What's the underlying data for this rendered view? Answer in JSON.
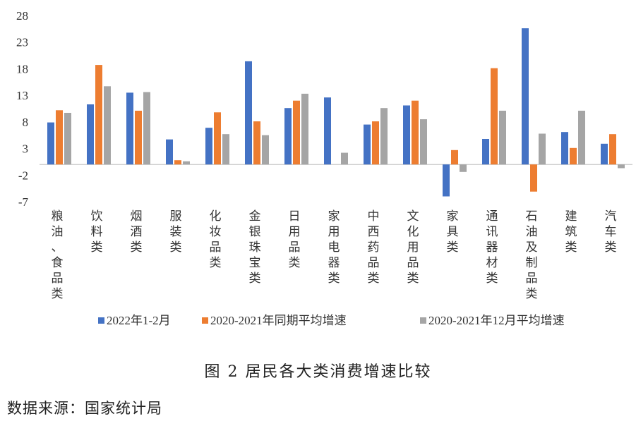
{
  "chart_data": {
    "type": "bar",
    "categories": [
      "粮油、食品类",
      "饮料类",
      "烟酒类",
      "服装类",
      "化妆品类",
      "金银珠宝类",
      "日用品类",
      "家用电器类",
      "中西药品类",
      "文化用品类",
      "家具类",
      "通讯器材类",
      "石油及制品类",
      "建筑类",
      "汽车类"
    ],
    "series": [
      {
        "name": "2022年1-2月",
        "color": "#4472C4",
        "values": [
          7.9,
          11.3,
          13.5,
          4.7,
          6.9,
          19.4,
          10.6,
          12.6,
          7.5,
          11.1,
          -6.0,
          4.8,
          25.6,
          6.1,
          3.9
        ]
      },
      {
        "name": "2020-2021年同期平均增速",
        "color": "#ED7D31",
        "values": [
          10.2,
          18.7,
          10.1,
          0.8,
          9.8,
          8.1,
          12.0,
          0.0,
          8.1,
          12.0,
          2.7,
          18.1,
          -5.1,
          3.1,
          5.7
        ]
      },
      {
        "name": "2020-2021年12月平均增速",
        "color": "#A5A5A5",
        "values": [
          9.7,
          14.7,
          13.6,
          0.6,
          5.7,
          5.5,
          13.3,
          2.2,
          10.6,
          8.5,
          -1.4,
          10.1,
          5.8,
          10.1,
          -0.7
        ]
      }
    ],
    "yticks": [
      28,
      23,
      18,
      13,
      8,
      3,
      -2,
      -7
    ],
    "ylim": [
      -7,
      28
    ],
    "grid": false,
    "legend_position": "bottom"
  },
  "caption": "图 2   居民各大类消费增速比较",
  "source_note": "数据来源：国家统计局"
}
